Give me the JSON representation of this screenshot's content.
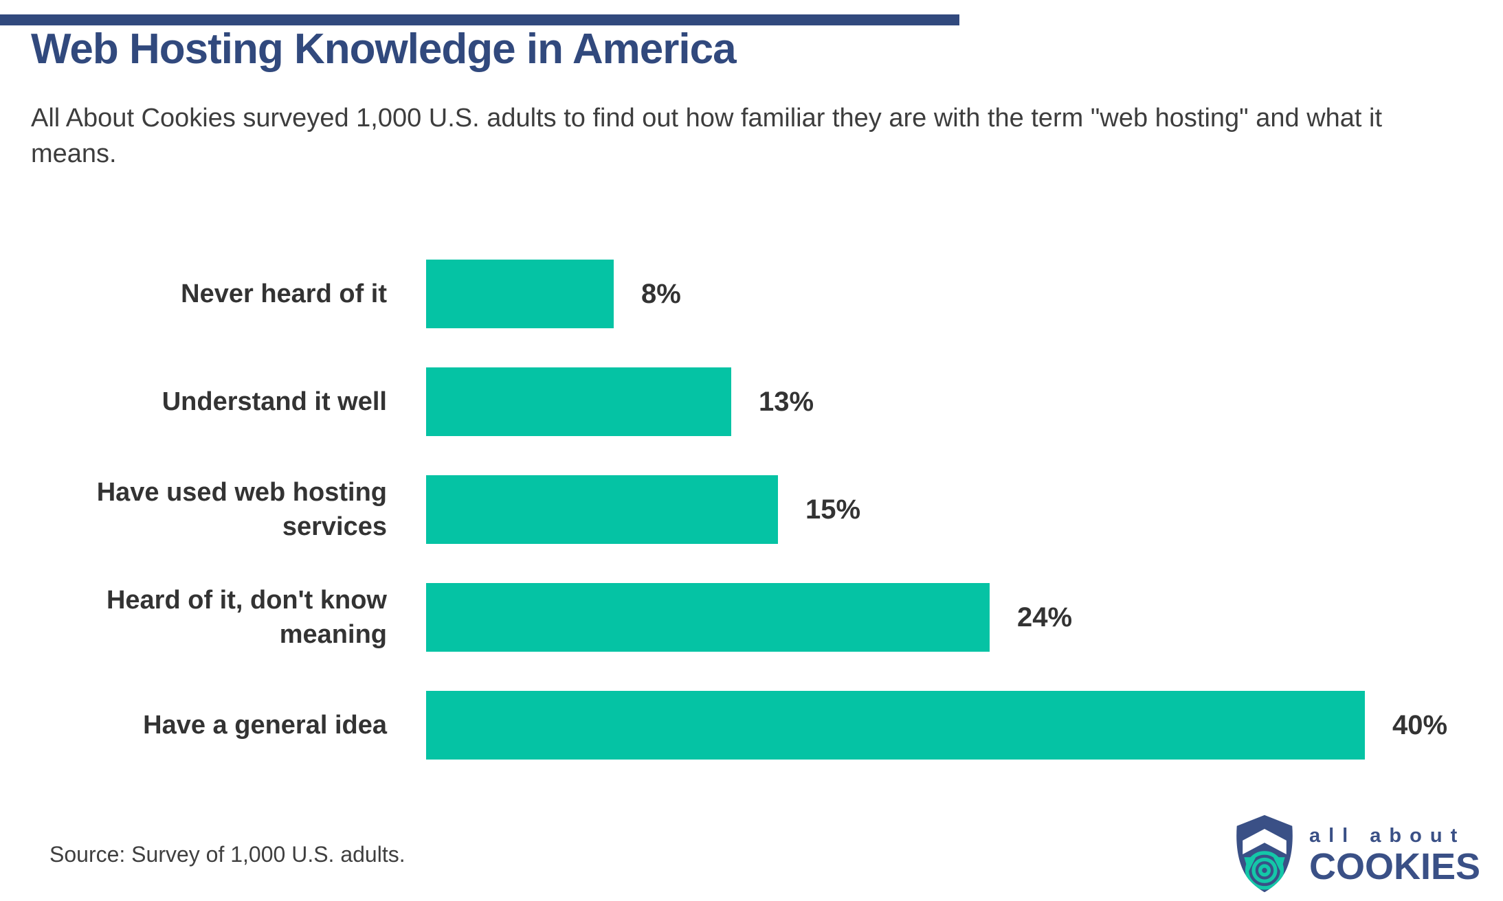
{
  "header": {
    "title": "Web Hosting Knowledge in America",
    "subtitle": "All About Cookies surveyed 1,000 U.S. adults to find out how familiar they are with the term \"web hosting\" and what it means."
  },
  "chart_data": {
    "type": "bar",
    "orientation": "horizontal",
    "title": "Web Hosting Knowledge in America",
    "categories": [
      "Never heard of it",
      "Understand it well",
      "Have used web hosting services",
      "Heard of it, don't know meaning",
      "Have a general idea"
    ],
    "values": [
      8,
      13,
      15,
      24,
      40
    ],
    "value_labels": [
      "8%",
      "13%",
      "15%",
      "24%",
      "40%"
    ],
    "xlim": [
      0,
      40
    ],
    "grid": "off",
    "legend": "none",
    "bar_color": "#05C3A4"
  },
  "footer": {
    "source": "Source: Survey of 1,000 U.S. adults.",
    "logo": {
      "line1": "all about",
      "line2": "COOKIES"
    }
  },
  "colors": {
    "navy": "#31497D",
    "logo_navy": "#3A5086",
    "teal": "#05C3A4",
    "text_dark": "#333333",
    "text_body": "#3d3d3d"
  }
}
